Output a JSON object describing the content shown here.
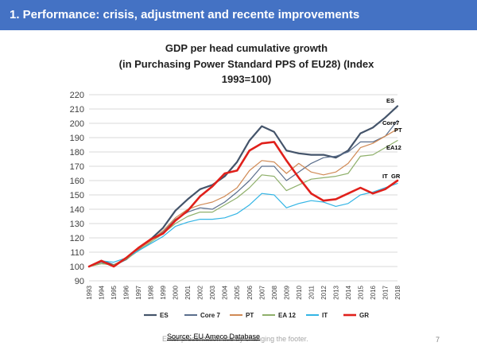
{
  "slide": {
    "header_title": "1. Performance: crisis, adjustment and recente improvements",
    "footer_placeholder": "Enter presentation title by changing the footer.",
    "source": "Source: EU Ameco Database",
    "page_number": "7",
    "header_color": "#4472c4"
  },
  "chart_data": {
    "type": "line",
    "title_lines": [
      "GDP per head cumulative growth",
      "(in Purchasing Power Standard  PPS of EU28)  (Index",
      "1993=100)"
    ],
    "x": [
      "1993",
      "1994",
      "1995",
      "1996",
      "1997",
      "1998",
      "1999",
      "2000",
      "2001",
      "2002",
      "2003",
      "2004",
      "2005",
      "2006",
      "2007",
      "2008",
      "2009",
      "2010",
      "2011",
      "2012",
      "2013",
      "2014",
      "2015",
      "2016",
      "2017",
      "2018"
    ],
    "ylim": [
      90,
      220
    ],
    "yticks": [
      90,
      100,
      110,
      120,
      130,
      140,
      150,
      160,
      170,
      180,
      190,
      200,
      210,
      220
    ],
    "grid": true,
    "legend_position": "bottom",
    "series": [
      {
        "name": "ES",
        "color": "#44546a",
        "width": 2.2,
        "end_label": "ES",
        "values": [
          100,
          104,
          101,
          105,
          112,
          119,
          127,
          139,
          147,
          154,
          157,
          163,
          173,
          188,
          198,
          194,
          181,
          179,
          178,
          178,
          176,
          181,
          193,
          197,
          204,
          212
        ]
      },
      {
        "name": "Core 7",
        "color": "#5a6e8c",
        "width": 1.2,
        "end_label": "Core7",
        "values": [
          100,
          103,
          100,
          105,
          112,
          119,
          124,
          133,
          138,
          141,
          140,
          145,
          152,
          160,
          170,
          170,
          160,
          166,
          172,
          176,
          177,
          180,
          187,
          187,
          191,
          202
        ]
      },
      {
        "name": "PT",
        "color": "#d08a55",
        "width": 1.2,
        "end_label": "PT",
        "values": [
          100,
          102,
          101,
          106,
          112,
          118,
          125,
          134,
          140,
          143,
          145,
          149,
          155,
          167,
          174,
          173,
          165,
          172,
          166,
          164,
          166,
          172,
          183,
          186,
          191,
          196
        ]
      },
      {
        "name": "EA 12",
        "color": "#8fb06b",
        "width": 1.2,
        "end_label": "EA12",
        "values": [
          100,
          102,
          101,
          105,
          111,
          117,
          123,
          130,
          135,
          138,
          138,
          143,
          148,
          155,
          164,
          163,
          153,
          157,
          161,
          162,
          163,
          165,
          177,
          178,
          183,
          188
        ]
      },
      {
        "name": "IT",
        "color": "#33b5e5",
        "width": 1.2,
        "end_label": "IT",
        "values": [
          100,
          104,
          103,
          106,
          111,
          116,
          121,
          128,
          131,
          133,
          133,
          134,
          137,
          143,
          151,
          150,
          141,
          144,
          146,
          145,
          142,
          144,
          150,
          152,
          155,
          158
        ]
      },
      {
        "name": "GR",
        "color": "#e0201b",
        "width": 2.6,
        "end_label": "GR",
        "values": [
          100,
          104,
          100,
          106,
          113,
          119,
          123,
          132,
          139,
          149,
          156,
          165,
          167,
          181,
          186,
          187,
          174,
          162,
          151,
          146,
          147,
          151,
          155,
          151,
          154,
          160
        ]
      }
    ]
  }
}
